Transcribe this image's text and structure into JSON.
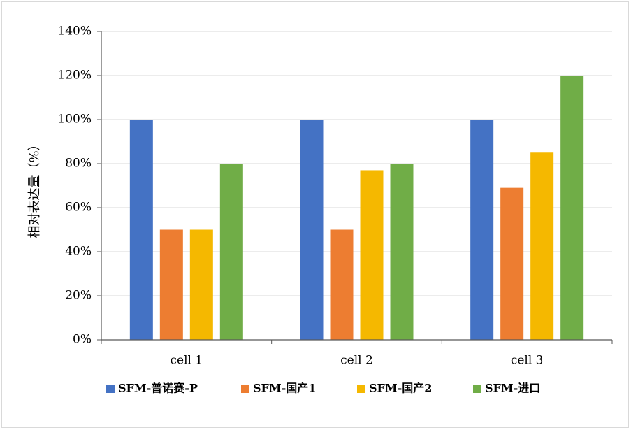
{
  "chart_data": {
    "type": "bar",
    "title": "",
    "xlabel": "",
    "ylabel": "相对表达量（%）",
    "ylim": [
      0,
      140
    ],
    "yticks": [
      "0%",
      "20%",
      "40%",
      "60%",
      "80%",
      "100%",
      "120%",
      "140%"
    ],
    "grid": true,
    "legend_position": "bottom",
    "categories": [
      "cell 1",
      "cell 2",
      "cell 3"
    ],
    "series": [
      {
        "name": "SFM-普诺赛-P",
        "color": "#4472C4",
        "values": [
          100,
          100,
          100
        ]
      },
      {
        "name": "SFM-国产1",
        "color": "#ED7D31",
        "values": [
          50,
          50,
          69
        ]
      },
      {
        "name": "SFM-国产2",
        "color": "#F5B800",
        "values": [
          50,
          77,
          85
        ]
      },
      {
        "name": "SFM-进口",
        "color": "#70AD47",
        "values": [
          80,
          80,
          120
        ]
      }
    ]
  }
}
